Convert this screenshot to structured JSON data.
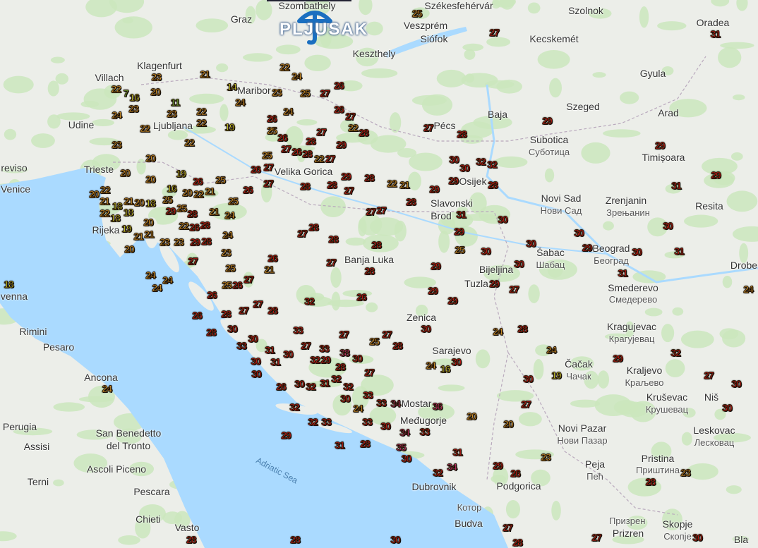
{
  "logo": {
    "text": "PLJUSAK",
    "icon": "umbrella-icon",
    "color": "#1a6fc0"
  },
  "sea_label": "Adriatic Sea",
  "colors": {
    "sea": "#aadaff",
    "land": "#eceee9",
    "forest": "#cbe6bd",
    "cold": "#7cc03a",
    "cool": "#c8c82a",
    "warm": "#e3a02e",
    "hot": "#cf1515",
    "very_hot": "#c42a6a"
  },
  "cities": [
    "Szombathely",
    "Székesfehérvár",
    "Szolnok",
    "Oradea",
    "Graz",
    "Veszprém",
    "Siófok",
    "Kecskemét",
    "Keszthely",
    "Gyula",
    "Klagenfurt",
    "Villach",
    "Maribor",
    "Szeged",
    "Arad",
    "Udine",
    "Ljubljana",
    "Baja",
    "Pécs",
    "Subotica",
    "Суботица",
    "Timișoara",
    "Trieste",
    "reviso",
    "Venice",
    "Velika Gorica",
    "Osijek",
    "Novi Sad",
    "Нови Сад",
    "Zrenjanin",
    "Зрењанин",
    "Resita",
    "Slavonski",
    "Brod",
    "Rijeka",
    "Banja Luka",
    "Šabac",
    "Шабац",
    "Beograd",
    "Београд",
    "Bijeljina",
    "Drobe",
    "Tuzla",
    "Smederevo",
    "Смедерево",
    "venna",
    "Zenica",
    "Rimini",
    "Kragujevac",
    "Крагујевац",
    "Pesaro",
    "Sarajevo",
    "Čačak",
    "Чачак",
    "Kraljevo",
    "Краљево",
    "Ancona",
    "Kruševac",
    "Крушевац",
    "Niš",
    "Mostar",
    "Međugorje",
    "Perugia",
    "San Benedetto",
    "del Tronto",
    "Novi Pazar",
    "Нови Пазар",
    "Leskovac",
    "Лесковац",
    "Assisi",
    "Ascoli Piceno",
    "Pristina",
    "Приштина",
    "Peja",
    "Пећ",
    "Terni",
    "Dubrovnik",
    "Podgorica",
    "Котор",
    "Pescara",
    "Chieti",
    "Vasto",
    "Budva",
    "Prizren",
    "Призрен",
    "Skopje",
    "Скопје",
    "Bla"
  ],
  "temperatures": [
    25,
    27,
    31,
    22,
    24,
    21,
    23,
    22,
    26,
    14,
    23,
    24,
    7,
    16,
    20,
    23,
    11,
    23,
    22,
    22,
    24,
    22,
    19,
    27,
    28,
    29,
    25,
    27,
    24,
    26,
    27,
    22,
    28,
    27,
    26,
    25,
    26,
    27,
    25,
    26,
    28,
    28,
    29,
    23,
    20,
    22,
    19,
    20,
    26,
    27,
    22,
    27,
    28,
    27,
    29,
    28,
    28,
    26,
    27,
    25,
    22,
    21,
    29,
    30,
    30,
    32,
    32,
    29,
    28,
    29,
    29,
    31,
    28,
    27,
    27,
    31,
    30,
    30,
    30,
    30,
    30,
    29,
    30,
    31,
    31,
    28,
    27,
    28,
    28,
    29,
    25,
    27,
    28,
    29,
    30,
    26,
    21,
    29,
    29,
    29,
    26,
    27,
    32,
    30,
    27,
    27,
    25,
    28,
    24,
    28,
    24,
    29,
    32,
    27,
    30,
    30,
    24,
    16,
    19,
    30,
    27,
    20,
    20,
    23,
    29,
    26,
    31,
    34,
    32,
    27,
    28,
    29,
    31,
    28,
    35,
    30,
    33,
    34,
    30,
    33,
    32,
    33,
    34,
    36,
    32,
    24,
    33,
    33,
    30,
    32,
    27,
    38,
    30,
    32,
    31,
    28,
    29,
    32,
    30,
    33,
    31,
    30,
    31,
    30,
    26,
    32,
    30,
    33,
    27,
    33,
    30,
    30,
    28,
    26,
    26,
    28,
    27,
    28,
    27,
    26,
    25,
    27,
    24,
    24,
    24,
    27,
    20,
    23,
    21,
    20,
    26,
    28,
    29,
    24,
    25,
    24,
    23,
    25,
    21,
    20,
    25,
    22,
    28,
    28,
    29,
    16,
    22,
    21,
    26,
    25,
    19,
    18,
    22,
    18,
    21,
    22,
    21,
    20,
    20,
    18,
    18,
    21,
    23,
    20,
    30,
    23,
    28,
    30,
    27,
    24,
    18,
    24,
    28,
    28,
    30
  ]
}
